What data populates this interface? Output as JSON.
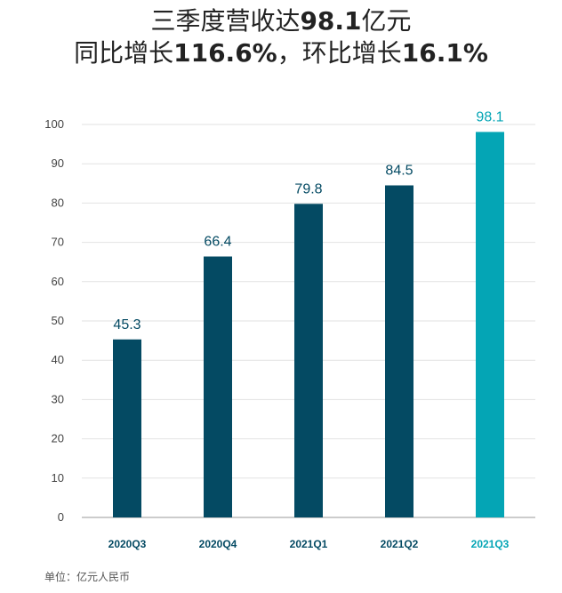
{
  "title": {
    "line1_prefix": "三季度营收达",
    "line1_value": "98.1",
    "line1_suffix": "亿元",
    "line2_a": "同比增长",
    "line2_yoy": "116.6%",
    "line2_b": "，环比增长",
    "line2_qoq": "16.1%"
  },
  "footer": "单位：亿元人民币",
  "colors": {
    "bar": "#044a63",
    "highlight": "#04a5b5",
    "grid": "#e2e2e2",
    "axis": "#999999"
  },
  "chart_data": {
    "type": "bar",
    "categories": [
      "2020Q3",
      "2020Q4",
      "2021Q1",
      "2021Q2",
      "2021Q3"
    ],
    "values": [
      45.3,
      66.4,
      79.8,
      84.5,
      98.1
    ],
    "value_labels": [
      "45.3",
      "66.4",
      "79.8",
      "84.5",
      "98.1"
    ],
    "highlight_index": 4,
    "ylim": [
      0,
      100
    ],
    "yticks": [
      0,
      10,
      20,
      30,
      40,
      50,
      60,
      70,
      80,
      90,
      100
    ],
    "grid": true,
    "xlabel": "",
    "ylabel": ""
  }
}
